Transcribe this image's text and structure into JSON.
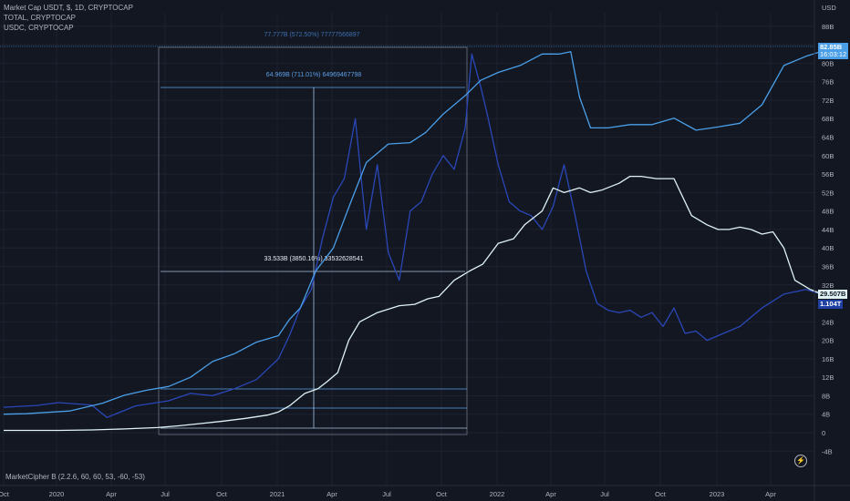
{
  "legend": {
    "line1": "Market Cap USDT, $, 1D, CRYPTOCAP",
    "line2": "TOTAL, CRYPTOCAP",
    "line3": "USDC, CRYPTOCAP"
  },
  "indicator_label": "MarketCipher B (2.2.6, 60, 60, 53, -60, -53)",
  "price_labels": {
    "usdt_value": "82.85B",
    "usdt_time": "16:03:12",
    "usdc_value": "29.507B",
    "total_value": "1.104T"
  },
  "annotations": {
    "top": "77.777B (572.50%) 77777566897",
    "middle": "64.969B (711.01%) 64969467798",
    "lower": "33.533B (3850.16%) 33532628541"
  },
  "colors": {
    "background": "#131722",
    "usdt": "#4a9fe8",
    "total": "#2a47b8",
    "usdc": "#dff3f5",
    "grid": "#1e2230",
    "axis_text": "#b2b5be",
    "label_usdt_bg": "#4a9fe8",
    "label_usdc_bg": "#dff3f5",
    "label_total_bg": "#1f3fa3"
  },
  "chart_data": {
    "type": "line",
    "title": "Market Cap USDT, $, 1D, CRYPTOCAP",
    "xlabel": "",
    "ylabel": "USD",
    "x_ticks": [
      "Oct",
      "2020",
      "Apr",
      "Jul",
      "Oct",
      "2021",
      "Apr",
      "Jul",
      "Oct",
      "2022",
      "Apr",
      "Jul",
      "Oct",
      "2023",
      "Apr"
    ],
    "y_ticks": [
      "-4B",
      "0",
      "4B",
      "8B",
      "12B",
      "16B",
      "20B",
      "24B",
      "28B",
      "32B",
      "36B",
      "40B",
      "44B",
      "48B",
      "52B",
      "56B",
      "60B",
      "64B",
      "68B",
      "72B",
      "76B",
      "80B",
      "84B",
      "88B",
      "USD"
    ],
    "ylim": [
      -4,
      90
    ],
    "x_range": [
      2019.75,
      2023.55
    ],
    "grid": true,
    "series": [
      {
        "name": "Market Cap USDT",
        "color": "#4a9fe8",
        "x": [
          2019.75,
          2019.85,
          2019.95,
          2020.05,
          2020.2,
          2020.3,
          2020.4,
          2020.5,
          2020.6,
          2020.7,
          2020.8,
          2020.9,
          2021.0,
          2021.05,
          2021.1,
          2021.17,
          2021.25,
          2021.33,
          2021.4,
          2021.5,
          2021.6,
          2021.67,
          2021.75,
          2021.85,
          2021.92,
          2022.0,
          2022.1,
          2022.2,
          2022.28,
          2022.33,
          2022.37,
          2022.42,
          2022.5,
          2022.6,
          2022.7,
          2022.8,
          2022.9,
          2023.0,
          2023.1,
          2023.2,
          2023.3,
          2023.4,
          2023.5
        ],
        "y": [
          4.0,
          4.1,
          4.4,
          4.7,
          6.4,
          8.1,
          9.2,
          10.0,
          12.0,
          15.4,
          17.1,
          19.6,
          21.0,
          24.5,
          27.0,
          35.0,
          40.0,
          50.0,
          58.5,
          62.5,
          62.8,
          65.0,
          69.0,
          73.0,
          76.3,
          78.0,
          79.5,
          82.0,
          82.0,
          82.5,
          72.7,
          66.0,
          66.0,
          66.7,
          66.7,
          68.1,
          65.5,
          66.2,
          67.0,
          71.0,
          79.5,
          81.5,
          83.0
        ]
      },
      {
        "name": "TOTAL",
        "color": "#2a47b8",
        "x": [
          2019.75,
          2019.9,
          2020.0,
          2020.15,
          2020.22,
          2020.35,
          2020.5,
          2020.6,
          2020.7,
          2020.8,
          2020.9,
          2021.0,
          2021.05,
          2021.1,
          2021.15,
          2021.2,
          2021.25,
          2021.3,
          2021.35,
          2021.4,
          2021.45,
          2021.5,
          2021.55,
          2021.6,
          2021.65,
          2021.7,
          2021.75,
          2021.8,
          2021.85,
          2021.88,
          2021.92,
          2021.95,
          2022.0,
          2022.05,
          2022.1,
          2022.15,
          2022.2,
          2022.25,
          2022.3,
          2022.35,
          2022.4,
          2022.45,
          2022.5,
          2022.55,
          2022.6,
          2022.65,
          2022.7,
          2022.75,
          2022.8,
          2022.85,
          2022.9,
          2022.95,
          2023.0,
          2023.1,
          2023.2,
          2023.3,
          2023.4,
          2023.5
        ],
        "y": [
          5.5,
          5.9,
          6.5,
          6.0,
          3.3,
          5.8,
          6.9,
          8.5,
          8.0,
          9.5,
          11.5,
          16.0,
          21.0,
          27.0,
          31.0,
          42.0,
          51.0,
          55.0,
          68.0,
          44.0,
          58.0,
          39.0,
          33.0,
          48.0,
          50.0,
          56.0,
          60.0,
          57.0,
          66.0,
          82.0,
          75.0,
          69.0,
          58.0,
          50.0,
          48.0,
          47.0,
          44.0,
          49.0,
          58.0,
          47.0,
          35.0,
          28.0,
          26.5,
          26.0,
          26.5,
          25.0,
          26.0,
          23.0,
          27.0,
          21.5,
          22.0,
          20.0,
          21.0,
          23.0,
          27.0,
          30.0,
          31.0,
          29.5
        ]
      },
      {
        "name": "USDC",
        "color": "#dff3f5",
        "x": [
          2019.75,
          2019.9,
          2020.0,
          2020.15,
          2020.3,
          2020.45,
          2020.55,
          2020.65,
          2020.75,
          2020.85,
          2020.95,
          2021.0,
          2021.05,
          2021.12,
          2021.18,
          2021.22,
          2021.27,
          2021.32,
          2021.37,
          2021.45,
          2021.55,
          2021.62,
          2021.68,
          2021.73,
          2021.8,
          2021.87,
          2021.93,
          2022.0,
          2022.07,
          2022.12,
          2022.2,
          2022.25,
          2022.3,
          2022.37,
          2022.42,
          2022.47,
          2022.55,
          2022.6,
          2022.65,
          2022.72,
          2022.8,
          2022.88,
          2022.95,
          2023.0,
          2023.05,
          2023.1,
          2023.15,
          2023.2,
          2023.25,
          2023.3,
          2023.35,
          2023.42,
          2023.5
        ],
        "y": [
          0.5,
          0.5,
          0.5,
          0.6,
          0.8,
          1.1,
          1.5,
          2.0,
          2.5,
          3.1,
          3.8,
          4.5,
          5.8,
          8.5,
          9.5,
          11.0,
          13.0,
          20.0,
          24.0,
          26.0,
          27.5,
          27.8,
          29.0,
          29.5,
          33.0,
          35.0,
          36.5,
          41.0,
          42.0,
          45.0,
          48.0,
          53.0,
          52.0,
          53.0,
          52.0,
          52.5,
          54.0,
          55.5,
          55.5,
          55.0,
          55.0,
          47.0,
          45.0,
          44.0,
          44.0,
          44.5,
          44.0,
          43.0,
          43.5,
          40.0,
          33.0,
          31.0,
          29.5
        ]
      }
    ]
  }
}
